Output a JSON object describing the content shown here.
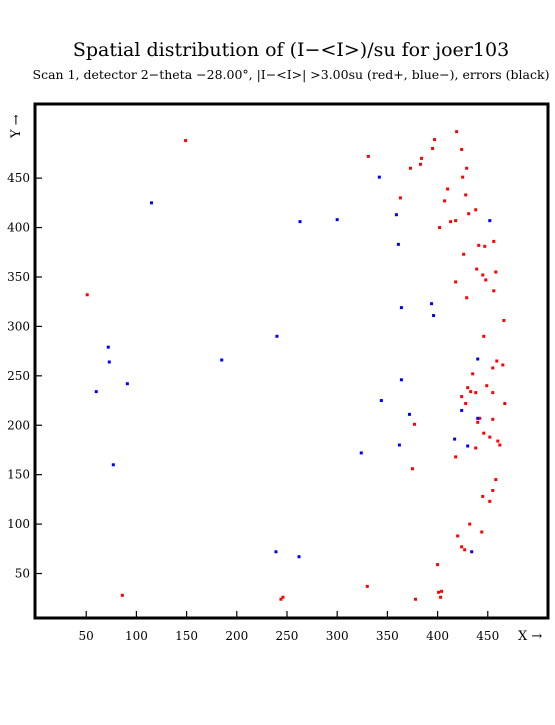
{
  "chart_data": {
    "type": "scatter",
    "title": "Spatial distribution of (I−<I>)/su for joer103",
    "subtitle": "Scan  1, detector 2−theta −28.00°, |I−<I>| >3.00su (red+, blue−), errors (black)",
    "xlabel": "X →",
    "ylabel": "Y →",
    "xlim": [
      -1,
      510
    ],
    "ylim": [
      5,
      525
    ],
    "x_ticks": [
      50,
      100,
      150,
      200,
      250,
      300,
      350,
      400,
      450
    ],
    "y_ticks": [
      50,
      100,
      150,
      200,
      250,
      300,
      350,
      400,
      450
    ],
    "series": [
      {
        "color": "#ff0000",
        "points": [
          [
            149,
            488
          ],
          [
            331,
            472
          ],
          [
            86,
            28
          ],
          [
            51,
            332
          ],
          [
            244,
            24
          ],
          [
            246,
            26
          ],
          [
            330,
            37
          ],
          [
            378,
            24
          ],
          [
            400,
            59
          ],
          [
            401,
            31
          ],
          [
            404,
            32
          ],
          [
            403,
            26
          ],
          [
            373,
            460
          ],
          [
            383,
            464
          ],
          [
            384,
            470
          ],
          [
            395,
            480
          ],
          [
            397,
            489
          ],
          [
            419,
            497
          ],
          [
            424,
            479
          ],
          [
            429,
            460
          ],
          [
            425,
            451
          ],
          [
            428,
            433
          ],
          [
            410,
            439
          ],
          [
            407,
            427
          ],
          [
            363,
            430
          ],
          [
            413,
            406
          ],
          [
            418,
            407
          ],
          [
            402,
            400
          ],
          [
            431,
            414
          ],
          [
            438,
            418
          ],
          [
            441,
            382
          ],
          [
            447,
            381
          ],
          [
            456,
            386
          ],
          [
            426,
            373
          ],
          [
            439,
            358
          ],
          [
            445,
            352
          ],
          [
            448,
            347
          ],
          [
            458,
            355
          ],
          [
            456,
            336
          ],
          [
            418,
            345
          ],
          [
            429,
            329
          ],
          [
            466,
            306
          ],
          [
            446,
            290
          ],
          [
            465,
            261
          ],
          [
            459,
            265
          ],
          [
            455,
            258
          ],
          [
            435,
            252
          ],
          [
            430,
            238
          ],
          [
            433,
            234
          ],
          [
            438,
            233
          ],
          [
            449,
            240
          ],
          [
            424,
            229
          ],
          [
            428,
            222
          ],
          [
            442,
            207
          ],
          [
            455,
            233
          ],
          [
            455,
            206
          ],
          [
            467,
            222
          ],
          [
            377,
            201
          ],
          [
            440,
            203
          ],
          [
            418,
            168
          ],
          [
            438,
            177
          ],
          [
            446,
            192
          ],
          [
            452,
            188
          ],
          [
            460,
            184
          ],
          [
            462,
            180
          ],
          [
            375,
            156
          ],
          [
            445,
            128
          ],
          [
            452,
            123
          ],
          [
            455,
            134
          ],
          [
            458,
            145
          ],
          [
            432,
            100
          ],
          [
            444,
            92
          ],
          [
            420,
            88
          ],
          [
            424,
            77
          ],
          [
            427,
            74
          ]
        ]
      },
      {
        "color": "#0000ff",
        "points": [
          [
            115,
            425
          ],
          [
            300,
            408
          ],
          [
            263,
            406
          ],
          [
            342,
            451
          ],
          [
            359,
            413
          ],
          [
            361,
            383
          ],
          [
            394,
            323
          ],
          [
            396,
            311
          ],
          [
            364,
            319
          ],
          [
            240,
            290
          ],
          [
            72,
            279
          ],
          [
            73,
            264
          ],
          [
            91,
            242
          ],
          [
            60,
            234
          ],
          [
            185,
            266
          ],
          [
            364,
            246
          ],
          [
            344,
            225
          ],
          [
            372,
            211
          ],
          [
            440,
            267
          ],
          [
            424,
            215
          ],
          [
            440,
            207
          ],
          [
            417,
            186
          ],
          [
            430,
            179
          ],
          [
            77,
            160
          ],
          [
            324,
            172
          ],
          [
            362,
            180
          ],
          [
            452,
            407
          ],
          [
            239,
            72
          ],
          [
            262,
            67
          ],
          [
            434,
            72
          ]
        ]
      }
    ]
  }
}
